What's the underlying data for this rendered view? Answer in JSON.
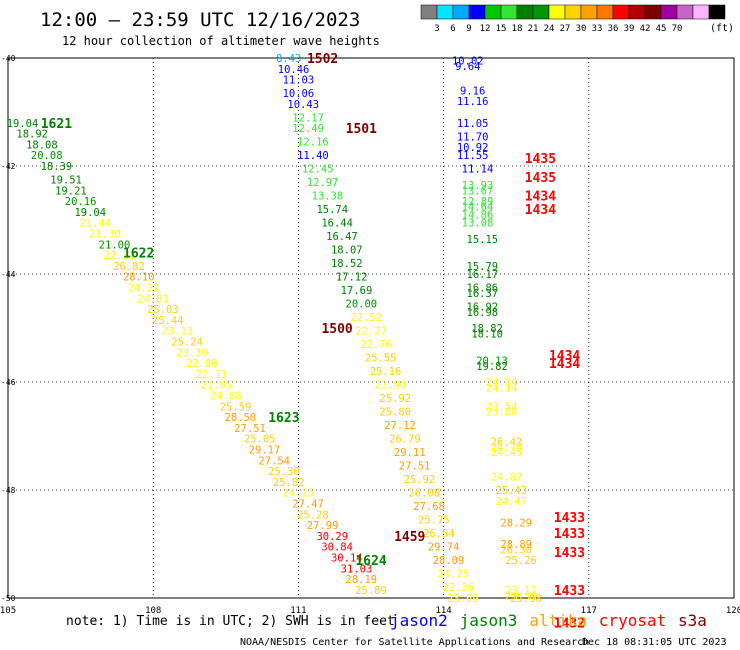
{
  "header": {
    "title": "12:00 – 23:59 UTC 12/16/2023",
    "subtitle": "12 hour collection of altimeter wave heights"
  },
  "color_scale": {
    "ticks": [
      "3",
      "6",
      "9",
      "12",
      "15",
      "18",
      "21",
      "24",
      "27",
      "30",
      "33",
      "36",
      "39",
      "42",
      "45",
      "70"
    ],
    "unit": "(ft)",
    "colors": [
      "#808080",
      "#00e5ff",
      "#00aaff",
      "#0000ff",
      "#00c800",
      "#32e632",
      "#008000",
      "#009600",
      "#ffff00",
      "#ffd200",
      "#ffa000",
      "#ff7800",
      "#ff0000",
      "#b40000",
      "#800000",
      "#a000a0",
      "#c864c8",
      "#ffb4ff",
      "#000000"
    ]
  },
  "footer": {
    "note": "note:  1) Time is in UTC;  2) SWH is in feet",
    "legend": [
      {
        "name": "jason2",
        "color": "#0000ff"
      },
      {
        "name": "jason3",
        "color": "#008000"
      },
      {
        "name": "altika",
        "color": "#ffa000"
      },
      {
        "name": "cryosat",
        "color": "#ff0000"
      },
      {
        "name": "s3a",
        "color": "#800000"
      }
    ],
    "credit": "NOAA/NESDIS Center for Satellite Applications and Research",
    "timestamp": "Dec 18 08:31:05 UTC 2023"
  },
  "chart_data": {
    "type": "scatter",
    "xlim": [
      105,
      120
    ],
    "ylim": [
      -50,
      -40
    ],
    "xticks": [
      "105",
      "108",
      "111",
      "114",
      "117",
      "120"
    ],
    "yticks": [
      "-40",
      "-42",
      "-44",
      "-46",
      "-48",
      "-50"
    ],
    "grid": true,
    "points": [
      {
        "x": 110.8,
        "y": -40.0,
        "v": "8.43",
        "c": "#00aaff"
      },
      {
        "x": 110.9,
        "y": -40.2,
        "v": "10.46",
        "c": "#0000ff"
      },
      {
        "x": 111.0,
        "y": -40.4,
        "v": "11.03",
        "c": "#0000ff"
      },
      {
        "x": 111.0,
        "y": -40.65,
        "v": "10.06",
        "c": "#0000ff"
      },
      {
        "x": 111.1,
        "y": -40.85,
        "v": "10.43",
        "c": "#0000ff"
      },
      {
        "x": 111.2,
        "y": -41.1,
        "v": "12.17",
        "c": "#32e632"
      },
      {
        "x": 111.2,
        "y": -41.3,
        "v": "12.49",
        "c": "#32e632"
      },
      {
        "x": 111.3,
        "y": -41.55,
        "v": "12.16",
        "c": "#32e632"
      },
      {
        "x": 111.3,
        "y": -41.8,
        "v": "11.40",
        "c": "#0000ff"
      },
      {
        "x": 111.4,
        "y": -42.05,
        "v": "12.45",
        "c": "#32e632"
      },
      {
        "x": 111.5,
        "y": -42.3,
        "v": "12.97",
        "c": "#32e632"
      },
      {
        "x": 111.6,
        "y": -42.55,
        "v": "13.38",
        "c": "#32e632"
      },
      {
        "x": 111.7,
        "y": -42.8,
        "v": "15.74",
        "c": "#008000"
      },
      {
        "x": 111.8,
        "y": -43.05,
        "v": "16.44",
        "c": "#008000"
      },
      {
        "x": 111.9,
        "y": -43.3,
        "v": "16.47",
        "c": "#008000"
      },
      {
        "x": 112.0,
        "y": -43.55,
        "v": "18.07",
        "c": "#008000"
      },
      {
        "x": 112.0,
        "y": -43.8,
        "v": "18.52",
        "c": "#008000"
      },
      {
        "x": 112.1,
        "y": -44.05,
        "v": "17.12",
        "c": "#008000"
      },
      {
        "x": 112.2,
        "y": -44.3,
        "v": "17.69",
        "c": "#008000"
      },
      {
        "x": 112.3,
        "y": -44.55,
        "v": "20.00",
        "c": "#009600"
      },
      {
        "x": 112.4,
        "y": -44.8,
        "v": "22.52",
        "c": "#ffff00"
      },
      {
        "x": 112.5,
        "y": -45.05,
        "v": "22.27",
        "c": "#ffff00"
      },
      {
        "x": 112.6,
        "y": -45.3,
        "v": "22.76",
        "c": "#ffff00"
      },
      {
        "x": 112.7,
        "y": -45.55,
        "v": "25.55",
        "c": "#ffd200"
      },
      {
        "x": 112.8,
        "y": -45.8,
        "v": "25.16",
        "c": "#ffd200"
      },
      {
        "x": 112.9,
        "y": -46.05,
        "v": "23.99",
        "c": "#ffff00"
      },
      {
        "x": 113.0,
        "y": -46.3,
        "v": "25.92",
        "c": "#ffd200"
      },
      {
        "x": 113.0,
        "y": -46.55,
        "v": "25.80",
        "c": "#ffd200"
      },
      {
        "x": 113.1,
        "y": -46.8,
        "v": "27.12",
        "c": "#ffa000"
      },
      {
        "x": 113.2,
        "y": -47.05,
        "v": "26.79",
        "c": "#ffd200"
      },
      {
        "x": 113.3,
        "y": -47.3,
        "v": "29.11",
        "c": "#ffa000"
      },
      {
        "x": 113.4,
        "y": -47.55,
        "v": "27.51",
        "c": "#ffa000"
      },
      {
        "x": 113.5,
        "y": -47.8,
        "v": "25.92",
        "c": "#ffd200"
      },
      {
        "x": 113.6,
        "y": -48.05,
        "v": "26.08",
        "c": "#ffd200"
      },
      {
        "x": 113.7,
        "y": -48.3,
        "v": "27.68",
        "c": "#ffa000"
      },
      {
        "x": 113.8,
        "y": -48.55,
        "v": "25.75",
        "c": "#ffd200"
      },
      {
        "x": 113.9,
        "y": -48.8,
        "v": "26.54",
        "c": "#ffd200"
      },
      {
        "x": 114.0,
        "y": -49.05,
        "v": "29.74",
        "c": "#ffa000"
      },
      {
        "x": 114.1,
        "y": -49.3,
        "v": "28.09",
        "c": "#ffa000"
      },
      {
        "x": 114.2,
        "y": -49.55,
        "v": "24.25",
        "c": "#ffff00"
      },
      {
        "x": 114.3,
        "y": -49.8,
        "v": "22.36",
        "c": "#ffff00"
      },
      {
        "x": 114.4,
        "y": -50.0,
        "v": "23.69",
        "c": "#ffff00"
      },
      {
        "x": 114.5,
        "y": -40.05,
        "v": "10.02",
        "c": "#0000ff"
      },
      {
        "x": 114.5,
        "y": -40.15,
        "v": "9.64",
        "c": "#0000ff"
      },
      {
        "x": 114.6,
        "y": -40.6,
        "v": "9.16",
        "c": "#0000ff"
      },
      {
        "x": 114.6,
        "y": -40.8,
        "v": "11.16",
        "c": "#0000ff"
      },
      {
        "x": 114.6,
        "y": -41.2,
        "v": "11.05",
        "c": "#0000ff"
      },
      {
        "x": 114.6,
        "y": -41.45,
        "v": "11.70",
        "c": "#0000ff"
      },
      {
        "x": 114.6,
        "y": -41.65,
        "v": "10.92",
        "c": "#0000ff"
      },
      {
        "x": 114.6,
        "y": -41.8,
        "v": "11.55",
        "c": "#0000ff"
      },
      {
        "x": 114.7,
        "y": -42.05,
        "v": "11.14",
        "c": "#0000ff"
      },
      {
        "x": 114.7,
        "y": -42.35,
        "v": "13.93",
        "c": "#32e632"
      },
      {
        "x": 114.7,
        "y": -42.45,
        "v": "13.67",
        "c": "#32e632"
      },
      {
        "x": 114.7,
        "y": -42.65,
        "v": "12.89",
        "c": "#32e632"
      },
      {
        "x": 114.7,
        "y": -42.75,
        "v": "14.64",
        "c": "#32e632"
      },
      {
        "x": 114.7,
        "y": -42.9,
        "v": "14.86",
        "c": "#32e632"
      },
      {
        "x": 114.7,
        "y": -43.05,
        "v": "13.08",
        "c": "#32e632"
      },
      {
        "x": 114.8,
        "y": -43.35,
        "v": "15.15",
        "c": "#008000"
      },
      {
        "x": 114.8,
        "y": -43.85,
        "v": "15.79",
        "c": "#008000"
      },
      {
        "x": 114.8,
        "y": -44.0,
        "v": "16.17",
        "c": "#008000"
      },
      {
        "x": 114.8,
        "y": -44.25,
        "v": "16.86",
        "c": "#008000"
      },
      {
        "x": 114.8,
        "y": -44.35,
        "v": "16.37",
        "c": "#008000"
      },
      {
        "x": 114.8,
        "y": -44.6,
        "v": "16.92",
        "c": "#008000"
      },
      {
        "x": 114.8,
        "y": -44.7,
        "v": "16.98",
        "c": "#008000"
      },
      {
        "x": 114.9,
        "y": -45.0,
        "v": "18.82",
        "c": "#008000"
      },
      {
        "x": 114.9,
        "y": -45.1,
        "v": "18.10",
        "c": "#008000"
      },
      {
        "x": 115.0,
        "y": -45.6,
        "v": "20.13",
        "c": "#009600"
      },
      {
        "x": 115.0,
        "y": -45.7,
        "v": "19.82",
        "c": "#008000"
      },
      {
        "x": 115.2,
        "y": -46.0,
        "v": "24.14",
        "c": "#ffff00"
      },
      {
        "x": 115.2,
        "y": -46.1,
        "v": "24.14",
        "c": "#ffff00"
      },
      {
        "x": 115.2,
        "y": -46.45,
        "v": "23.54",
        "c": "#ffff00"
      },
      {
        "x": 115.2,
        "y": -46.55,
        "v": "23.88",
        "c": "#ffff00"
      },
      {
        "x": 115.3,
        "y": -47.1,
        "v": "26.42",
        "c": "#ffd200"
      },
      {
        "x": 115.3,
        "y": -47.2,
        "v": "24.76",
        "c": "#ffff00"
      },
      {
        "x": 115.3,
        "y": -47.3,
        "v": "24.45",
        "c": "#ffff00"
      },
      {
        "x": 115.3,
        "y": -47.75,
        "v": "24.82",
        "c": "#ffff00"
      },
      {
        "x": 115.4,
        "y": -48.0,
        "v": "25.43",
        "c": "#ffd200"
      },
      {
        "x": 115.4,
        "y": -48.2,
        "v": "24.47",
        "c": "#ffff00"
      },
      {
        "x": 115.5,
        "y": -48.6,
        "v": "28.29",
        "c": "#ffa000"
      },
      {
        "x": 115.5,
        "y": -49.0,
        "v": "28.89",
        "c": "#ffa000"
      },
      {
        "x": 115.5,
        "y": -49.1,
        "v": "26.30",
        "c": "#ffd200"
      },
      {
        "x": 115.6,
        "y": -49.3,
        "v": "25.26",
        "c": "#ffd200"
      },
      {
        "x": 115.6,
        "y": -49.85,
        "v": "23.11",
        "c": "#ffff00"
      },
      {
        "x": 115.6,
        "y": -49.95,
        "v": "23.56",
        "c": "#ffff00"
      },
      {
        "x": 115.7,
        "y": -50.0,
        "v": "25.98",
        "c": "#ffd200"
      },
      {
        "x": 105.3,
        "y": -41.2,
        "v": "19.04",
        "c": "#008000"
      },
      {
        "x": 105.5,
        "y": -41.4,
        "v": "18.92",
        "c": "#008000"
      },
      {
        "x": 105.7,
        "y": -41.6,
        "v": "18.08",
        "c": "#008000"
      },
      {
        "x": 105.8,
        "y": -41.8,
        "v": "20.08",
        "c": "#009600"
      },
      {
        "x": 106.0,
        "y": -42.0,
        "v": "18.39",
        "c": "#008000"
      },
      {
        "x": 106.2,
        "y": -42.25,
        "v": "19.51",
        "c": "#008000"
      },
      {
        "x": 106.3,
        "y": -42.45,
        "v": "19.21",
        "c": "#008000"
      },
      {
        "x": 106.5,
        "y": -42.65,
        "v": "20.16",
        "c": "#009600"
      },
      {
        "x": 106.7,
        "y": -42.85,
        "v": "19.04",
        "c": "#008000"
      },
      {
        "x": 106.8,
        "y": -43.05,
        "v": "21.44",
        "c": "#ffff00"
      },
      {
        "x": 107.0,
        "y": -43.25,
        "v": "21.30",
        "c": "#ffff00"
      },
      {
        "x": 107.2,
        "y": -43.45,
        "v": "21.00",
        "c": "#009600"
      },
      {
        "x": 107.3,
        "y": -43.65,
        "v": "22.31",
        "c": "#ffff00"
      },
      {
        "x": 107.5,
        "y": -43.85,
        "v": "26.82",
        "c": "#ffd200"
      },
      {
        "x": 107.7,
        "y": -44.05,
        "v": "28.10",
        "c": "#ffa000"
      },
      {
        "x": 107.8,
        "y": -44.25,
        "v": "24.22",
        "c": "#ffff00"
      },
      {
        "x": 108.0,
        "y": -44.45,
        "v": "24.81",
        "c": "#ffff00"
      },
      {
        "x": 108.2,
        "y": -44.65,
        "v": "25.03",
        "c": "#ffd200"
      },
      {
        "x": 108.3,
        "y": -44.85,
        "v": "25.44",
        "c": "#ffd200"
      },
      {
        "x": 108.5,
        "y": -45.05,
        "v": "23.13",
        "c": "#ffff00"
      },
      {
        "x": 108.7,
        "y": -45.25,
        "v": "25.24",
        "c": "#ffd200"
      },
      {
        "x": 108.8,
        "y": -45.45,
        "v": "23.39",
        "c": "#ffff00"
      },
      {
        "x": 109.0,
        "y": -45.65,
        "v": "22.00",
        "c": "#ffff00"
      },
      {
        "x": 109.2,
        "y": -45.85,
        "v": "22.11",
        "c": "#ffff00"
      },
      {
        "x": 109.3,
        "y": -46.05,
        "v": "21.95",
        "c": "#ffff00"
      },
      {
        "x": 109.5,
        "y": -46.25,
        "v": "24.88",
        "c": "#ffff00"
      },
      {
        "x": 109.7,
        "y": -46.45,
        "v": "25.59",
        "c": "#ffd200"
      },
      {
        "x": 109.8,
        "y": -46.65,
        "v": "28.50",
        "c": "#ffa000"
      },
      {
        "x": 110.0,
        "y": -46.85,
        "v": "27.51",
        "c": "#ffa000"
      },
      {
        "x": 110.2,
        "y": -47.05,
        "v": "25.05",
        "c": "#ffd200"
      },
      {
        "x": 110.3,
        "y": -47.25,
        "v": "29.17",
        "c": "#ffa000"
      },
      {
        "x": 110.5,
        "y": -47.45,
        "v": "27.54",
        "c": "#ffa000"
      },
      {
        "x": 110.7,
        "y": -47.65,
        "v": "25.30",
        "c": "#ffd200"
      },
      {
        "x": 110.8,
        "y": -47.85,
        "v": "25.82",
        "c": "#ffd200"
      },
      {
        "x": 111.0,
        "y": -48.05,
        "v": "24.15",
        "c": "#ffff00"
      },
      {
        "x": 111.2,
        "y": -48.25,
        "v": "27.47",
        "c": "#ffa000"
      },
      {
        "x": 111.3,
        "y": -48.45,
        "v": "25.28",
        "c": "#ffd200"
      },
      {
        "x": 111.5,
        "y": -48.65,
        "v": "27.99",
        "c": "#ffa000"
      },
      {
        "x": 111.7,
        "y": -48.85,
        "v": "30.29",
        "c": "#ff0000"
      },
      {
        "x": 111.8,
        "y": -49.05,
        "v": "30.84",
        "c": "#ff0000"
      },
      {
        "x": 112.0,
        "y": -49.25,
        "v": "30.14",
        "c": "#ff0000"
      },
      {
        "x": 112.2,
        "y": -49.45,
        "v": "31.03",
        "c": "#ff0000"
      },
      {
        "x": 112.3,
        "y": -49.65,
        "v": "28.19",
        "c": "#ffa000"
      },
      {
        "x": 112.5,
        "y": -49.85,
        "v": "25.89",
        "c": "#ffd200"
      },
      {
        "x": 112.7,
        "y": -50.05,
        "v": "24.87",
        "c": "#ffff00"
      },
      {
        "x": 112.8,
        "y": -50.25,
        "v": "24.46",
        "c": "#ffff00"
      },
      {
        "x": 113.0,
        "y": -50.45,
        "v": "24.50",
        "c": "#ffff00"
      },
      {
        "x": 113.2,
        "y": -50.65,
        "v": "25.16",
        "c": "#ffd200"
      },
      {
        "x": 113.3,
        "y": -50.85,
        "v": "25.90",
        "c": "#ffd200"
      }
    ],
    "time_labels": [
      {
        "x": 111.5,
        "y": -40.0,
        "v": "1502",
        "c": "#800000"
      },
      {
        "x": 112.3,
        "y": -41.3,
        "v": "1501",
        "c": "#800000"
      },
      {
        "x": 111.8,
        "y": -45.0,
        "v": "1500",
        "c": "#800000"
      },
      {
        "x": 113.3,
        "y": -48.85,
        "v": "1459",
        "c": "#800000"
      },
      {
        "x": 116.0,
        "y": -41.85,
        "v": "1435",
        "c": "#ff0000"
      },
      {
        "x": 116.0,
        "y": -42.2,
        "v": "1435",
        "c": "#ff0000"
      },
      {
        "x": 116.0,
        "y": -42.55,
        "v": "1434",
        "c": "#ff0000"
      },
      {
        "x": 116.0,
        "y": -42.8,
        "v": "1434",
        "c": "#ff0000"
      },
      {
        "x": 116.5,
        "y": -45.5,
        "v": "1434",
        "c": "#ff0000"
      },
      {
        "x": 116.5,
        "y": -45.65,
        "v": "1434",
        "c": "#ff0000"
      },
      {
        "x": 116.6,
        "y": -48.5,
        "v": "1433",
        "c": "#ff0000"
      },
      {
        "x": 116.6,
        "y": -48.8,
        "v": "1433",
        "c": "#ff0000"
      },
      {
        "x": 116.6,
        "y": -49.15,
        "v": "1433",
        "c": "#ff0000"
      },
      {
        "x": 116.6,
        "y": -49.85,
        "v": "1433",
        "c": "#ff0000"
      },
      {
        "x": 116.6,
        "y": -50.45,
        "v": "1432",
        "c": "#ff0000"
      },
      {
        "x": 106.0,
        "y": -41.2,
        "v": "1621",
        "c": "#008000"
      },
      {
        "x": 107.7,
        "y": -43.6,
        "v": "1622",
        "c": "#008000"
      },
      {
        "x": 110.7,
        "y": -46.65,
        "v": "1623",
        "c": "#008000"
      },
      {
        "x": 112.5,
        "y": -49.3,
        "v": "1624",
        "c": "#008000"
      }
    ]
  }
}
